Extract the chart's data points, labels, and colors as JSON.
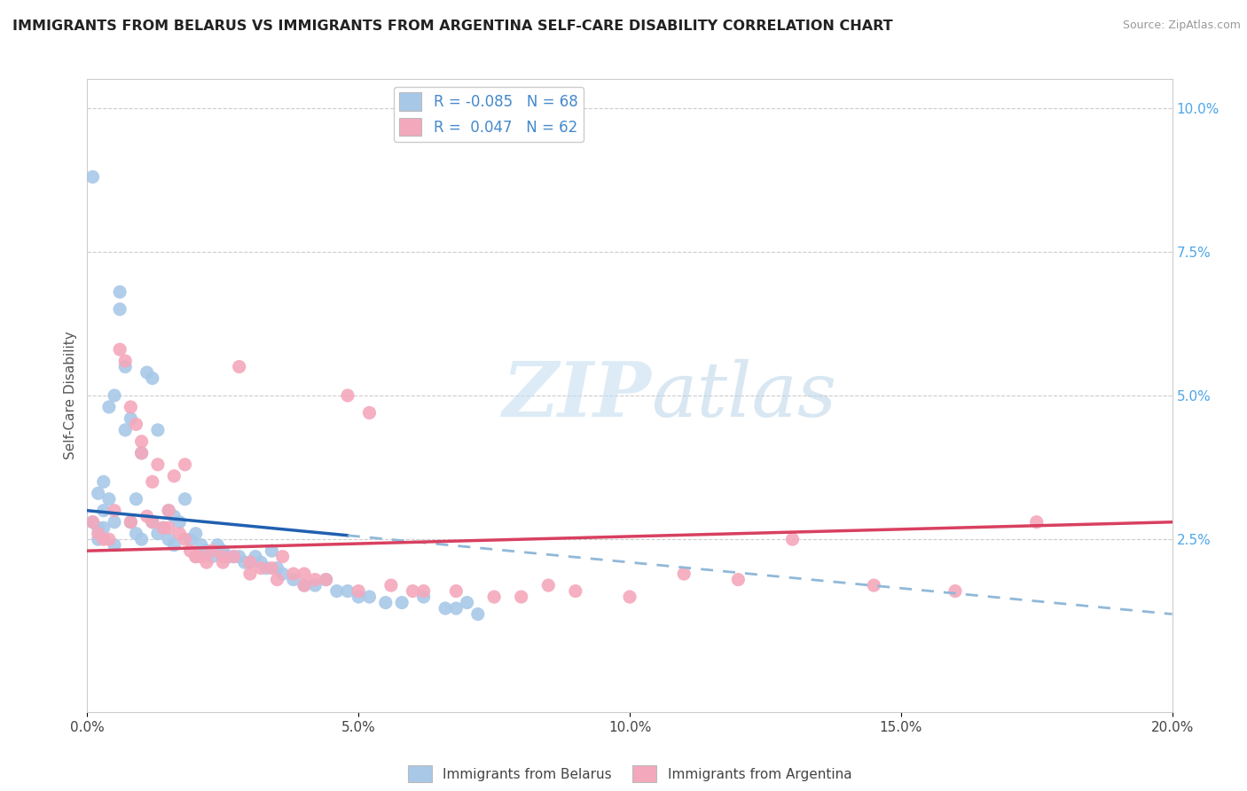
{
  "title": "IMMIGRANTS FROM BELARUS VS IMMIGRANTS FROM ARGENTINA SELF-CARE DISABILITY CORRELATION CHART",
  "source": "Source: ZipAtlas.com",
  "ylabel": "Self-Care Disability",
  "right_yticks": [
    "10.0%",
    "7.5%",
    "5.0%",
    "2.5%"
  ],
  "right_ytick_vals": [
    0.1,
    0.075,
    0.05,
    0.025
  ],
  "legend_label1": "Immigrants from Belarus",
  "legend_label2": "Immigrants from Argentina",
  "r_belarus": -0.085,
  "n_belarus": 68,
  "r_argentina": 0.047,
  "n_argentina": 62,
  "color_belarus": "#a8c8e8",
  "color_argentina": "#f4a8bc",
  "trendline_belarus_solid_color": "#2060b0",
  "trendline_argentina_solid_color": "#d84060",
  "trendline_belarus_dashed_color": "#90b8d8",
  "watermark_zip": "ZIP",
  "watermark_atlas": "atlas",
  "background_color": "#ffffff",
  "xlim": [
    0.0,
    0.2
  ],
  "ylim": [
    -0.005,
    0.105
  ],
  "xtick_vals": [
    0.0,
    0.05,
    0.1,
    0.15,
    0.2
  ],
  "xtick_labels": [
    "0.0%",
    "5.0%",
    "10.0%",
    "15.0%",
    "20.0%"
  ],
  "belarus_x": [
    0.001,
    0.001,
    0.002,
    0.002,
    0.002,
    0.003,
    0.003,
    0.003,
    0.004,
    0.004,
    0.005,
    0.005,
    0.005,
    0.006,
    0.006,
    0.007,
    0.007,
    0.008,
    0.008,
    0.009,
    0.009,
    0.01,
    0.01,
    0.011,
    0.012,
    0.012,
    0.013,
    0.013,
    0.014,
    0.015,
    0.015,
    0.016,
    0.016,
    0.017,
    0.018,
    0.019,
    0.02,
    0.021,
    0.022,
    0.023,
    0.024,
    0.025,
    0.026,
    0.027,
    0.028,
    0.029,
    0.03,
    0.031,
    0.032,
    0.033,
    0.034,
    0.035,
    0.036,
    0.038,
    0.04,
    0.042,
    0.044,
    0.046,
    0.048,
    0.05,
    0.052,
    0.055,
    0.058,
    0.062,
    0.066,
    0.068,
    0.07,
    0.072
  ],
  "belarus_y": [
    0.088,
    0.028,
    0.027,
    0.033,
    0.025,
    0.03,
    0.027,
    0.035,
    0.048,
    0.032,
    0.05,
    0.028,
    0.024,
    0.068,
    0.065,
    0.055,
    0.044,
    0.046,
    0.028,
    0.032,
    0.026,
    0.04,
    0.025,
    0.054,
    0.053,
    0.028,
    0.044,
    0.026,
    0.027,
    0.025,
    0.03,
    0.029,
    0.024,
    0.028,
    0.032,
    0.025,
    0.026,
    0.024,
    0.023,
    0.022,
    0.024,
    0.023,
    0.022,
    0.022,
    0.022,
    0.021,
    0.021,
    0.022,
    0.021,
    0.02,
    0.023,
    0.02,
    0.019,
    0.018,
    0.017,
    0.017,
    0.018,
    0.016,
    0.016,
    0.015,
    0.015,
    0.014,
    0.014,
    0.015,
    0.013,
    0.013,
    0.014,
    0.012
  ],
  "argentina_x": [
    0.001,
    0.002,
    0.003,
    0.004,
    0.005,
    0.006,
    0.007,
    0.008,
    0.009,
    0.01,
    0.011,
    0.012,
    0.013,
    0.014,
    0.015,
    0.016,
    0.017,
    0.018,
    0.019,
    0.02,
    0.021,
    0.022,
    0.023,
    0.025,
    0.027,
    0.028,
    0.03,
    0.032,
    0.034,
    0.036,
    0.038,
    0.04,
    0.042,
    0.044,
    0.048,
    0.052,
    0.056,
    0.062,
    0.068,
    0.075,
    0.08,
    0.085,
    0.09,
    0.1,
    0.11,
    0.12,
    0.13,
    0.145,
    0.16,
    0.175,
    0.008,
    0.01,
    0.012,
    0.015,
    0.018,
    0.02,
    0.025,
    0.03,
    0.035,
    0.04,
    0.05,
    0.06
  ],
  "argentina_y": [
    0.028,
    0.026,
    0.025,
    0.025,
    0.03,
    0.058,
    0.056,
    0.028,
    0.045,
    0.042,
    0.029,
    0.028,
    0.038,
    0.027,
    0.027,
    0.036,
    0.026,
    0.038,
    0.023,
    0.022,
    0.022,
    0.021,
    0.023,
    0.022,
    0.022,
    0.055,
    0.021,
    0.02,
    0.02,
    0.022,
    0.019,
    0.019,
    0.018,
    0.018,
    0.05,
    0.047,
    0.017,
    0.016,
    0.016,
    0.015,
    0.015,
    0.017,
    0.016,
    0.015,
    0.019,
    0.018,
    0.025,
    0.017,
    0.016,
    0.028,
    0.048,
    0.04,
    0.035,
    0.03,
    0.025,
    0.022,
    0.021,
    0.019,
    0.018,
    0.017,
    0.016,
    0.016
  ],
  "trendline_b_x0": 0.0,
  "trendline_b_y0": 0.03,
  "trendline_b_x1": 0.2,
  "trendline_b_y1": 0.012,
  "trendline_b_solid_end": 0.048,
  "trendline_a_x0": 0.0,
  "trendline_a_y0": 0.023,
  "trendline_a_x1": 0.2,
  "trendline_a_y1": 0.028
}
